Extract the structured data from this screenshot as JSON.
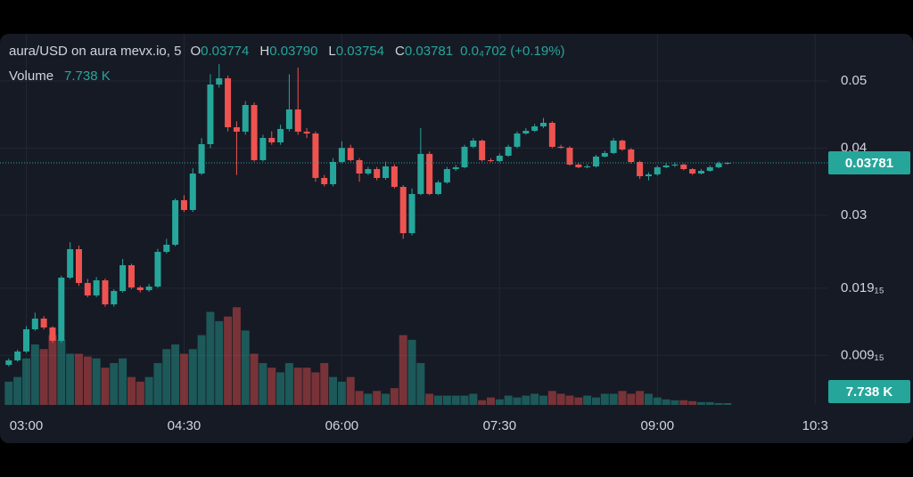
{
  "chart_data": {
    "type": "candlestick",
    "title": "aura/USD on aura mevx.io, 5",
    "legend_ohlc": [
      {
        "key": "O",
        "value": "0.03774"
      },
      {
        "key": "H",
        "value": "0.03790"
      },
      {
        "key": "L",
        "value": "0.03754"
      },
      {
        "key": "C",
        "value": "0.03781"
      }
    ],
    "change_label": "0.0₄702 (+0.19%)",
    "volume_title": "Volume",
    "volume_label": "7.738 K",
    "up_color": "#26a69a",
    "down_color": "#ef5350",
    "x": [
      "02:50",
      "02:55",
      "03:00",
      "03:05",
      "03:10",
      "03:15",
      "03:20",
      "03:25",
      "03:30",
      "03:35",
      "03:40",
      "03:45",
      "03:50",
      "03:55",
      "04:00",
      "04:05",
      "04:10",
      "04:15",
      "04:20",
      "04:25",
      "04:30",
      "04:35",
      "04:40",
      "04:45",
      "04:50",
      "04:55",
      "05:00",
      "05:05",
      "05:10",
      "05:15",
      "05:20",
      "05:25",
      "05:30",
      "05:35",
      "05:40",
      "05:45",
      "05:50",
      "05:55",
      "06:00",
      "06:05",
      "06:10",
      "06:15",
      "06:20",
      "06:25",
      "06:30",
      "06:35",
      "06:40",
      "06:45",
      "06:50",
      "06:55",
      "07:00",
      "07:05",
      "07:10",
      "07:15",
      "07:20",
      "07:25",
      "07:30",
      "07:35",
      "07:40",
      "07:45",
      "07:50",
      "07:55",
      "08:00",
      "08:05",
      "08:10",
      "08:15",
      "08:20",
      "08:25",
      "08:30",
      "08:35",
      "08:40",
      "08:45",
      "08:50",
      "08:55",
      "09:00",
      "09:05",
      "09:10",
      "09:15",
      "09:20",
      "09:25",
      "09:30",
      "09:35",
      "09:40"
    ],
    "open": [
      0.00773,
      0.0084,
      0.00972,
      0.01303,
      0.01462,
      0.0133,
      0.01131,
      0.02072,
      0.02496,
      0.01992,
      0.01807,
      0.02032,
      0.01674,
      0.01873,
      0.02257,
      0.01926,
      0.01886,
      0.01939,
      0.02456,
      0.02562,
      0.03225,
      0.03079,
      0.03622,
      0.04059,
      0.04947,
      0.0504,
      0.04311,
      0.04245,
      0.04642,
      0.03821,
      0.04152,
      0.04086,
      0.04285,
      0.04576,
      0.04245,
      0.04218,
      0.03556,
      0.03463,
      0.03794,
      0.04003,
      0.03821,
      0.03622,
      0.03688,
      0.03556,
      0.03728,
      0.03423,
      0.02734,
      0.03317,
      0.03914,
      0.03317,
      0.0349,
      0.03688,
      0.03715,
      0.0402,
      0.04112,
      0.03821,
      0.03808,
      0.03887,
      0.0402,
      0.04218,
      0.04258,
      0.04324,
      0.04377,
      0.0402,
      0.04006,
      0.03755,
      0.03715,
      0.03728,
      0.03874,
      0.03927,
      0.04112,
      0.0398,
      0.03794,
      0.03582,
      0.03609,
      0.03715,
      0.03741,
      0.03755,
      0.03688,
      0.03622,
      0.03662,
      0.03715,
      0.03774
    ],
    "high": [
      0.0087,
      0.01,
      0.0135,
      0.0155,
      0.015,
      0.0135,
      0.021,
      0.026,
      0.0255,
      0.0205,
      0.0208,
      0.0206,
      0.019,
      0.0235,
      0.0228,
      0.0195,
      0.0198,
      0.025,
      0.0265,
      0.0325,
      0.033,
      0.037,
      0.0415,
      0.051,
      0.0525,
      0.0508,
      0.044,
      0.047,
      0.0468,
      0.042,
      0.0425,
      0.0435,
      0.051,
      0.052,
      0.043,
      0.0425,
      0.036,
      0.0385,
      0.041,
      0.0405,
      0.0385,
      0.0372,
      0.0372,
      0.038,
      0.0376,
      0.0345,
      0.034,
      0.043,
      0.0395,
      0.0352,
      0.0372,
      0.0375,
      0.0405,
      0.0415,
      0.0413,
      0.0385,
      0.0392,
      0.0405,
      0.0425,
      0.043,
      0.0436,
      0.0445,
      0.044,
      0.0405,
      0.0403,
      0.0378,
      0.0376,
      0.039,
      0.0396,
      0.0415,
      0.0413,
      0.04,
      0.0381,
      0.0364,
      0.0374,
      0.0378,
      0.0379,
      0.0377,
      0.037,
      0.0369,
      0.0374,
      0.038,
      0.0379
    ],
    "low": [
      0.0075,
      0.0082,
      0.0095,
      0.0128,
      0.013,
      0.011,
      0.011,
      0.0205,
      0.0195,
      0.0178,
      0.0178,
      0.0164,
      0.0164,
      0.0185,
      0.019,
      0.0185,
      0.0186,
      0.0192,
      0.0243,
      0.0254,
      0.0305,
      0.0305,
      0.036,
      0.04,
      0.049,
      0.0425,
      0.036,
      0.042,
      0.038,
      0.038,
      0.0405,
      0.0405,
      0.0425,
      0.042,
      0.0415,
      0.035,
      0.0343,
      0.0343,
      0.0378,
      0.038,
      0.035,
      0.036,
      0.0352,
      0.0353,
      0.034,
      0.0265,
      0.027,
      0.033,
      0.033,
      0.033,
      0.0347,
      0.0366,
      0.037,
      0.04,
      0.038,
      0.0379,
      0.0379,
      0.0387,
      0.04,
      0.042,
      0.0424,
      0.043,
      0.04,
      0.0399,
      0.0374,
      0.037,
      0.037,
      0.0371,
      0.0386,
      0.0391,
      0.0396,
      0.0377,
      0.0354,
      0.0352,
      0.0359,
      0.037,
      0.0372,
      0.0367,
      0.036,
      0.0361,
      0.0365,
      0.037,
      0.03754
    ],
    "close": [
      0.0084,
      0.00972,
      0.01303,
      0.01462,
      0.0133,
      0.01131,
      0.02072,
      0.02496,
      0.01992,
      0.01807,
      0.02032,
      0.01674,
      0.01873,
      0.02257,
      0.01926,
      0.01886,
      0.01939,
      0.02456,
      0.02562,
      0.03225,
      0.03079,
      0.03622,
      0.04059,
      0.04947,
      0.0504,
      0.04311,
      0.04245,
      0.04642,
      0.03821,
      0.04152,
      0.04086,
      0.04285,
      0.04576,
      0.04245,
      0.04218,
      0.03556,
      0.03463,
      0.03794,
      0.04003,
      0.03821,
      0.03622,
      0.03688,
      0.03556,
      0.03728,
      0.03423,
      0.02734,
      0.03317,
      0.03914,
      0.03317,
      0.0349,
      0.03688,
      0.03715,
      0.0402,
      0.04112,
      0.03821,
      0.03808,
      0.03887,
      0.0402,
      0.04218,
      0.04258,
      0.04324,
      0.04377,
      0.0402,
      0.04006,
      0.03755,
      0.03715,
      0.03728,
      0.03874,
      0.03927,
      0.04112,
      0.0398,
      0.03794,
      0.03582,
      0.03609,
      0.03715,
      0.03741,
      0.03755,
      0.03688,
      0.03622,
      0.03662,
      0.03715,
      0.03774,
      0.03781
    ],
    "volume": [
      100,
      120,
      200,
      260,
      240,
      300,
      280,
      220,
      220,
      208,
      200,
      160,
      180,
      200,
      120,
      100,
      120,
      180,
      240,
      260,
      220,
      240,
      300,
      400,
      360,
      380,
      420,
      320,
      220,
      180,
      160,
      140,
      180,
      160,
      160,
      140,
      180,
      120,
      100,
      120,
      60,
      48,
      60,
      48,
      72,
      300,
      280,
      180,
      48,
      40,
      40,
      40,
      40,
      48,
      20,
      32,
      24,
      40,
      32,
      40,
      48,
      40,
      60,
      48,
      40,
      32,
      40,
      32,
      48,
      48,
      60,
      48,
      60,
      48,
      32,
      24,
      20,
      20,
      16,
      12,
      12,
      8,
      7.738
    ],
    "volume_lim": [
      0,
      440
    ],
    "xlim": [
      "02:45",
      "10:37"
    ],
    "xticks": [
      "03:00",
      "04:30",
      "06:00",
      "07:30",
      "09:00",
      {
        "value": "10:30",
        "label": "10:3"
      }
    ],
    "ylim": [
      0.00177,
      0.05702
    ],
    "yticks": [
      {
        "value": 0.00915,
        "label": "0.009₁₅"
      },
      {
        "value": 0.01915,
        "label": "0.019₁₅"
      },
      0.03,
      0.04,
      0.05
    ],
    "grid": true
  }
}
